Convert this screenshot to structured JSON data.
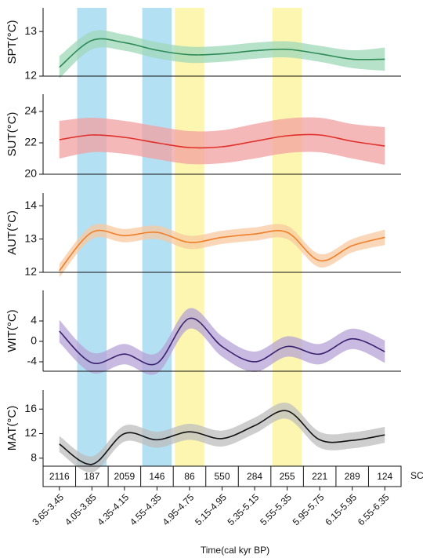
{
  "chart_data": [
    {
      "type": "line",
      "y_label": "SPT(°C)",
      "ylim": [
        12,
        13.53
      ],
      "yticks": [
        12,
        13
      ],
      "color": "#2e8b57",
      "band_color": "#9fd8b8",
      "values": [
        12.2,
        12.8,
        12.75,
        12.58,
        12.48,
        12.5,
        12.57,
        12.6,
        12.5,
        12.38,
        12.38
      ],
      "lower": [
        11.95,
        12.6,
        12.57,
        12.4,
        12.3,
        12.32,
        12.39,
        12.42,
        12.32,
        12.18,
        12.12
      ],
      "upper": [
        12.45,
        13.0,
        12.93,
        12.76,
        12.66,
        12.68,
        12.75,
        12.78,
        12.68,
        12.58,
        12.64
      ]
    },
    {
      "type": "line",
      "y_label": "SUT(°C)",
      "ylim": [
        20,
        25.1
      ],
      "yticks": [
        20,
        22,
        24
      ],
      "color": "#e0302a",
      "band_color": "#f2a0a0",
      "values": [
        22.2,
        22.5,
        22.35,
        22.0,
        21.7,
        21.75,
        22.1,
        22.45,
        22.5,
        22.1,
        21.8
      ],
      "lower": [
        21.0,
        21.4,
        21.3,
        20.95,
        20.65,
        20.7,
        21.0,
        21.35,
        21.4,
        21.0,
        20.6
      ],
      "upper": [
        23.4,
        23.6,
        23.4,
        23.05,
        22.75,
        22.8,
        23.2,
        23.55,
        23.6,
        23.2,
        23.0
      ]
    },
    {
      "type": "line",
      "y_label": "AUT(°C)",
      "ylim": [
        12,
        14.38
      ],
      "yticks": [
        12,
        13,
        14
      ],
      "color": "#f07f2a",
      "band_color": "#f8c9a0",
      "values": [
        12.05,
        13.2,
        13.1,
        13.2,
        12.9,
        13.05,
        13.15,
        13.2,
        12.35,
        12.8,
        13.05
      ],
      "lower": [
        11.85,
        13.0,
        12.9,
        13.0,
        12.7,
        12.85,
        12.95,
        13.0,
        12.15,
        12.6,
        12.82
      ],
      "upper": [
        12.25,
        13.4,
        13.3,
        13.4,
        13.1,
        13.25,
        13.35,
        13.4,
        12.55,
        13.0,
        13.28
      ]
    },
    {
      "type": "line",
      "y_label": "WIT(°C)",
      "ylim": [
        -5.85,
        10
      ],
      "yticks": [
        -4,
        0,
        4
      ],
      "color": "#3b2270",
      "band_color": "#b5a3d6",
      "values": [
        2,
        -4.2,
        -2.5,
        -4.3,
        4.5,
        -1,
        -4,
        -1,
        -2.5,
        0.5,
        -2
      ],
      "lower": [
        -0.2,
        -6.2,
        -4.5,
        -6.3,
        2.5,
        -3,
        -6,
        -3,
        -4.5,
        -1.5,
        -4.2
      ],
      "upper": [
        4.2,
        -2.2,
        -0.5,
        -2.3,
        6.5,
        1,
        -2,
        1,
        -0.5,
        2.5,
        0.2
      ]
    },
    {
      "type": "line",
      "y_label": "MAT(°C)",
      "ylim": [
        6.7,
        19.1
      ],
      "yticks": [
        8,
        12,
        16
      ],
      "color": "#111111",
      "band_color": "#bdbdbd",
      "values": [
        10.3,
        7,
        12,
        11,
        12.3,
        11.2,
        13.3,
        15.7,
        11,
        10.9,
        11.8
      ],
      "lower": [
        9.0,
        5.7,
        10.7,
        9.7,
        11.0,
        9.9,
        12.0,
        14.4,
        9.7,
        9.6,
        10.5
      ],
      "upper": [
        11.6,
        8.3,
        13.3,
        12.3,
        13.6,
        12.5,
        14.6,
        17.0,
        12.3,
        12.2,
        13.1
      ]
    }
  ],
  "x_axis": {
    "label": "Time(cal kyr BP)",
    "categories": [
      "3.65-3.45",
      "4.05-3.85",
      "4.35-4.15",
      "4.55-4.35",
      "4.95-4.75",
      "5.15-4.95",
      "5.35-5.15",
      "5.55-5.35",
      "5.95-5.75",
      "6.15-5.95",
      "6.55-6.35"
    ]
  },
  "sample_counts": {
    "label": "SC",
    "values": [
      2116,
      187,
      2059,
      146,
      86,
      550,
      284,
      255,
      221,
      289,
      124
    ]
  },
  "highlights": [
    {
      "column": 1,
      "color": "#b3e0f2"
    },
    {
      "column": 3,
      "color": "#b3e0f2"
    },
    {
      "column": 4,
      "color": "#fdf6b0"
    },
    {
      "column": 7,
      "color": "#fdf6b0"
    }
  ]
}
